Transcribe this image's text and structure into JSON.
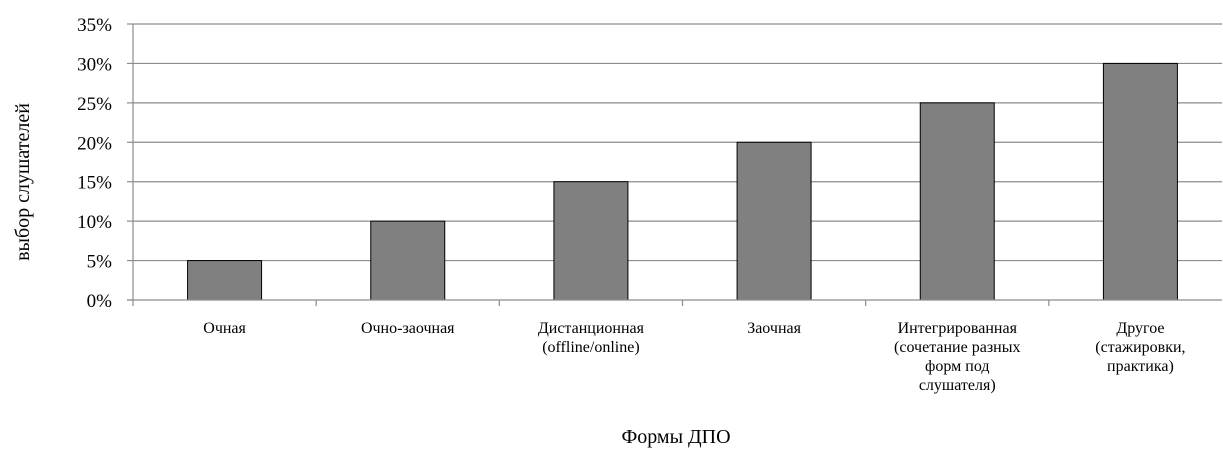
{
  "chart_data": {
    "type": "bar",
    "categories": [
      [
        "Очная"
      ],
      [
        "Очно-заочная"
      ],
      [
        "Дистанционная",
        "(offline/online)"
      ],
      [
        "Заочная"
      ],
      [
        "Интегрированная",
        "(сочетание разных",
        "форм под",
        "слушателя)"
      ],
      [
        "Другое",
        "(стажировки,",
        "практика)"
      ]
    ],
    "values": [
      5,
      10,
      15,
      20,
      25,
      30
    ],
    "value_format": "percent",
    "xlabel": "Формы ДПО",
    "ylabel": "выбор слушателей",
    "ylim": [
      0,
      35
    ],
    "ytick_step": 5,
    "yticks": [
      "0%",
      "5%",
      "10%",
      "15%",
      "20%",
      "25%",
      "30%",
      "35%"
    ],
    "grid": true,
    "legend": "none",
    "colors": {
      "bar": "#808080",
      "bar_stroke": "#000000",
      "grid": "#8c8c8c",
      "axis": "#8c8c8c"
    }
  }
}
